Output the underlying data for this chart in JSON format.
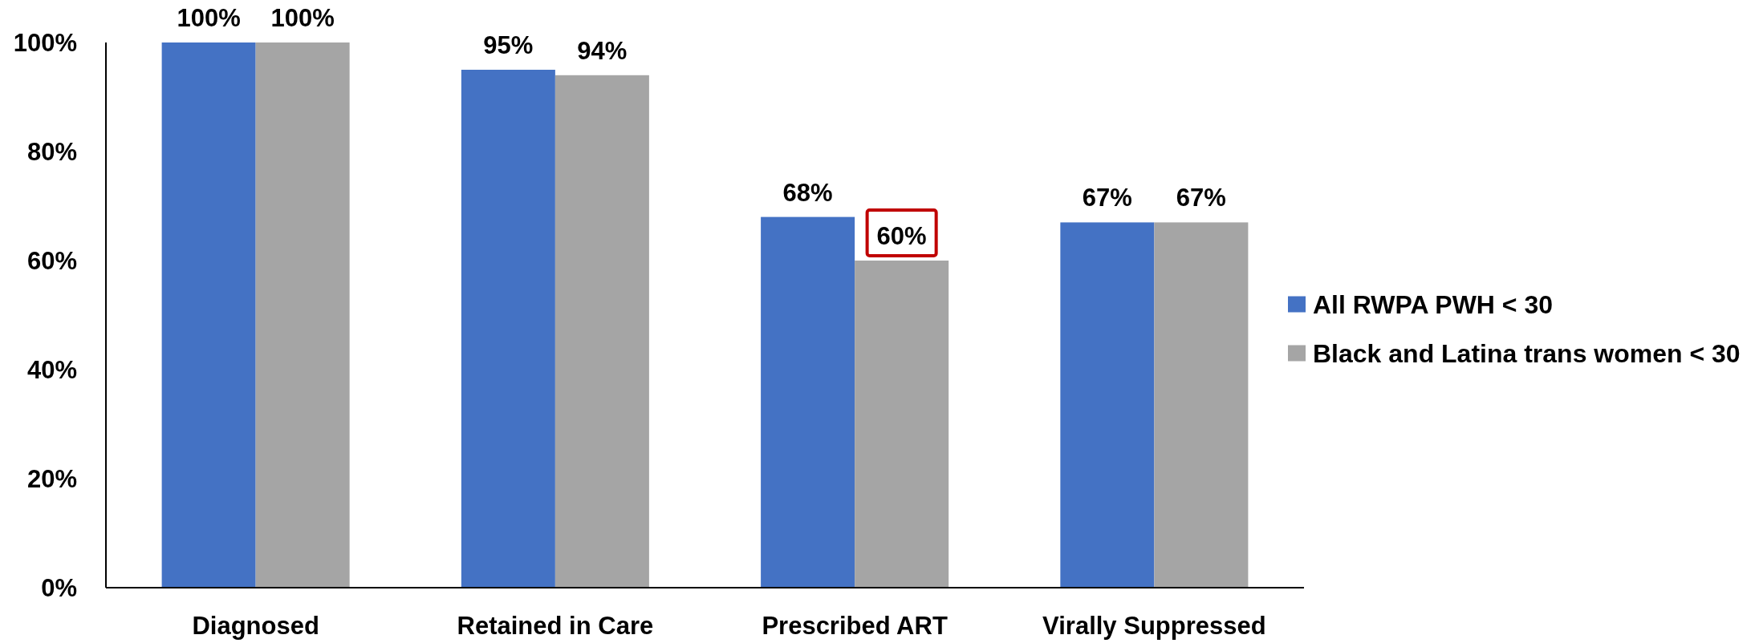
{
  "chart_data": {
    "type": "bar",
    "categories": [
      "Diagnosed",
      "Retained in Care",
      "Prescribed ART",
      "Virally Suppressed"
    ],
    "series": [
      {
        "name": "All RWPA PWH < 30",
        "color": "#4472c4",
        "values": [
          100,
          95,
          68,
          67
        ],
        "value_labels": [
          "100%",
          "95%",
          "68%",
          "67%"
        ]
      },
      {
        "name": "Black and Latina trans women < 30",
        "color": "#a5a5a5",
        "values": [
          100,
          94,
          60,
          67
        ],
        "value_labels": [
          "100%",
          "94%",
          null,
          "67%"
        ]
      }
    ],
    "ylim": [
      0,
      100
    ],
    "yticks": [
      {
        "value": 0,
        "label": "0%"
      },
      {
        "value": 20,
        "label": "20%"
      },
      {
        "value": 40,
        "label": "40%"
      },
      {
        "value": 60,
        "label": "60%"
      },
      {
        "value": 80,
        "label": "80%"
      },
      {
        "value": 100,
        "label": "100%"
      }
    ],
    "grid": false,
    "legend": "right",
    "annotations": [
      {
        "text": "60%",
        "x": "Prescribed ART",
        "y": 60
      }
    ]
  }
}
